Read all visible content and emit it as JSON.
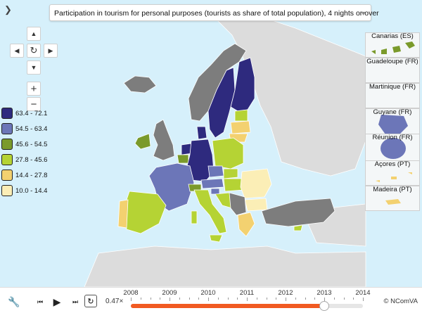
{
  "title": "Participation in tourism for personal purposes (tourists as share of total population), 4 nights or over",
  "legend": [
    {
      "label": "63.4 - 72.1",
      "color": "#2e2a7e"
    },
    {
      "label": "54.5 - 63.4",
      "color": "#6c76b8"
    },
    {
      "label": "45.6 - 54.5",
      "color": "#7a9a2b"
    },
    {
      "label": "27.8 - 45.6",
      "color": "#b5d334"
    },
    {
      "label": "14.4 - 27.8",
      "color": "#f3d170"
    },
    {
      "label": "10.0 - 14.4",
      "color": "#fbeeb6"
    }
  ],
  "no_data_color": "#7d7d7d",
  "non_eu_color": "#dcdcdc",
  "sea_color": "#d6f0fb",
  "insets": [
    "Canarias (ES)",
    "Guadeloupe (FR)",
    "Martinique (FR)",
    "Guyane (FR)",
    "Réunion (FR)",
    "Açores (PT)",
    "Madeira (PT)"
  ],
  "timeline": {
    "years": [
      "2008",
      "2009",
      "2010",
      "2011",
      "2012",
      "2013",
      "2014"
    ],
    "selected_year": "2013",
    "speed": "0.47×"
  },
  "credit": "© NComVA"
}
